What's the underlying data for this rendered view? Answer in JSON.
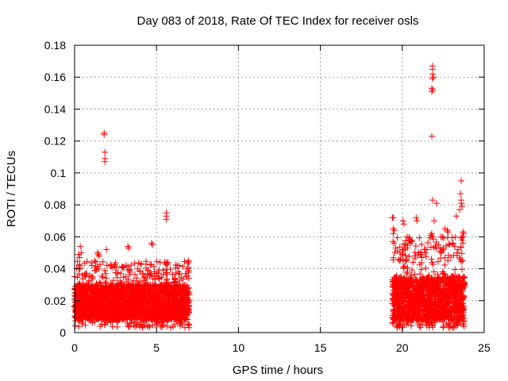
{
  "chart_data": {
    "type": "scatter",
    "title": "Day 083 of 2018, Rate Of TEC Index for receiver osls",
    "xlabel": "GPS time / hours",
    "ylabel": "ROTI / TECUs",
    "xlim": [
      0,
      25
    ],
    "ylim": [
      0,
      0.18
    ],
    "xticks": [
      0,
      5,
      10,
      15,
      20,
      25
    ],
    "yticks": [
      0,
      0.02,
      0.04,
      0.06,
      0.08,
      0.1,
      0.12,
      0.14,
      0.16,
      0.18
    ],
    "xtick_labels": [
      "0",
      "5",
      "10",
      "15",
      "20",
      "25"
    ],
    "ytick_labels": [
      "0",
      "0.02",
      "0.04",
      "0.06",
      "0.08",
      "0.1",
      "0.12",
      "0.14",
      "0.16",
      "0.18"
    ],
    "grid": true,
    "marker": "+",
    "marker_color": "#ff0000",
    "series": [
      {
        "name": "ROTI",
        "dense_segments": [
          {
            "x_start": 0.0,
            "x_end": 7.0,
            "y_low": 0.008,
            "y_high": 0.03,
            "y_max": 0.045
          },
          {
            "x_start": 19.4,
            "x_end": 23.8,
            "y_low": 0.008,
            "y_high": 0.035,
            "y_max": 0.06
          }
        ],
        "points": [
          [
            1.8,
            0.125
          ],
          [
            1.8,
            0.124
          ],
          [
            1.85,
            0.113
          ],
          [
            1.85,
            0.109
          ],
          [
            1.85,
            0.107
          ],
          [
            5.6,
            0.075
          ],
          [
            5.6,
            0.073
          ],
          [
            5.6,
            0.071
          ],
          [
            4.7,
            0.056
          ],
          [
            4.75,
            0.055
          ],
          [
            3.25,
            0.054
          ],
          [
            3.3,
            0.053
          ],
          [
            0.35,
            0.054
          ],
          [
            0.4,
            0.05
          ],
          [
            0.25,
            0.049
          ],
          [
            0.3,
            0.047
          ],
          [
            1.4,
            0.05
          ],
          [
            1.45,
            0.049
          ],
          [
            1.5,
            0.048
          ],
          [
            1.95,
            0.052
          ],
          [
            5.5,
            0.044
          ],
          [
            5.55,
            0.043
          ],
          [
            21.85,
            0.167
          ],
          [
            21.85,
            0.165
          ],
          [
            21.85,
            0.162
          ],
          [
            21.9,
            0.16
          ],
          [
            21.85,
            0.159
          ],
          [
            21.8,
            0.153
          ],
          [
            21.85,
            0.152
          ],
          [
            21.8,
            0.151
          ],
          [
            21.8,
            0.123
          ],
          [
            23.6,
            0.095
          ],
          [
            23.55,
            0.087
          ],
          [
            23.6,
            0.083
          ],
          [
            23.6,
            0.081
          ],
          [
            23.65,
            0.079
          ],
          [
            23.5,
            0.077
          ],
          [
            23.3,
            0.073
          ],
          [
            21.85,
            0.083
          ],
          [
            22.1,
            0.081
          ],
          [
            21.95,
            0.07
          ],
          [
            19.4,
            0.072
          ],
          [
            19.45,
            0.072
          ],
          [
            19.45,
            0.065
          ],
          [
            19.5,
            0.064
          ],
          [
            19.45,
            0.062
          ],
          [
            20.05,
            0.07
          ],
          [
            20.1,
            0.068
          ],
          [
            20.85,
            0.072
          ],
          [
            20.9,
            0.07
          ],
          [
            21.8,
            0.062
          ],
          [
            21.85,
            0.06
          ],
          [
            21.75,
            0.061
          ],
          [
            22.75,
            0.064
          ],
          [
            22.8,
            0.063
          ],
          [
            22.6,
            0.065
          ],
          [
            23.7,
            0.063
          ],
          [
            23.75,
            0.062
          ],
          [
            23.7,
            0.06
          ],
          [
            23.65,
            0.058
          ],
          [
            23.7,
            0.056
          ],
          [
            20.3,
            0.06
          ],
          [
            20.4,
            0.058
          ],
          [
            20.5,
            0.056
          ],
          [
            20.6,
            0.057
          ],
          [
            20.2,
            0.055
          ],
          [
            19.6,
            0.053
          ],
          [
            19.7,
            0.051
          ],
          [
            19.55,
            0.05
          ],
          [
            20.0,
            0.052
          ],
          [
            21.4,
            0.05
          ],
          [
            21.5,
            0.052
          ],
          [
            22.2,
            0.055
          ],
          [
            22.3,
            0.053
          ],
          [
            22.4,
            0.05
          ],
          [
            22.9,
            0.055
          ],
          [
            23.1,
            0.056
          ],
          [
            23.2,
            0.054
          ],
          [
            23.4,
            0.052
          ],
          [
            23.35,
            0.05
          ],
          [
            21.0,
            0.05
          ],
          [
            21.1,
            0.049
          ],
          [
            20.8,
            0.048
          ],
          [
            21.2,
            0.047
          ]
        ]
      }
    ]
  }
}
